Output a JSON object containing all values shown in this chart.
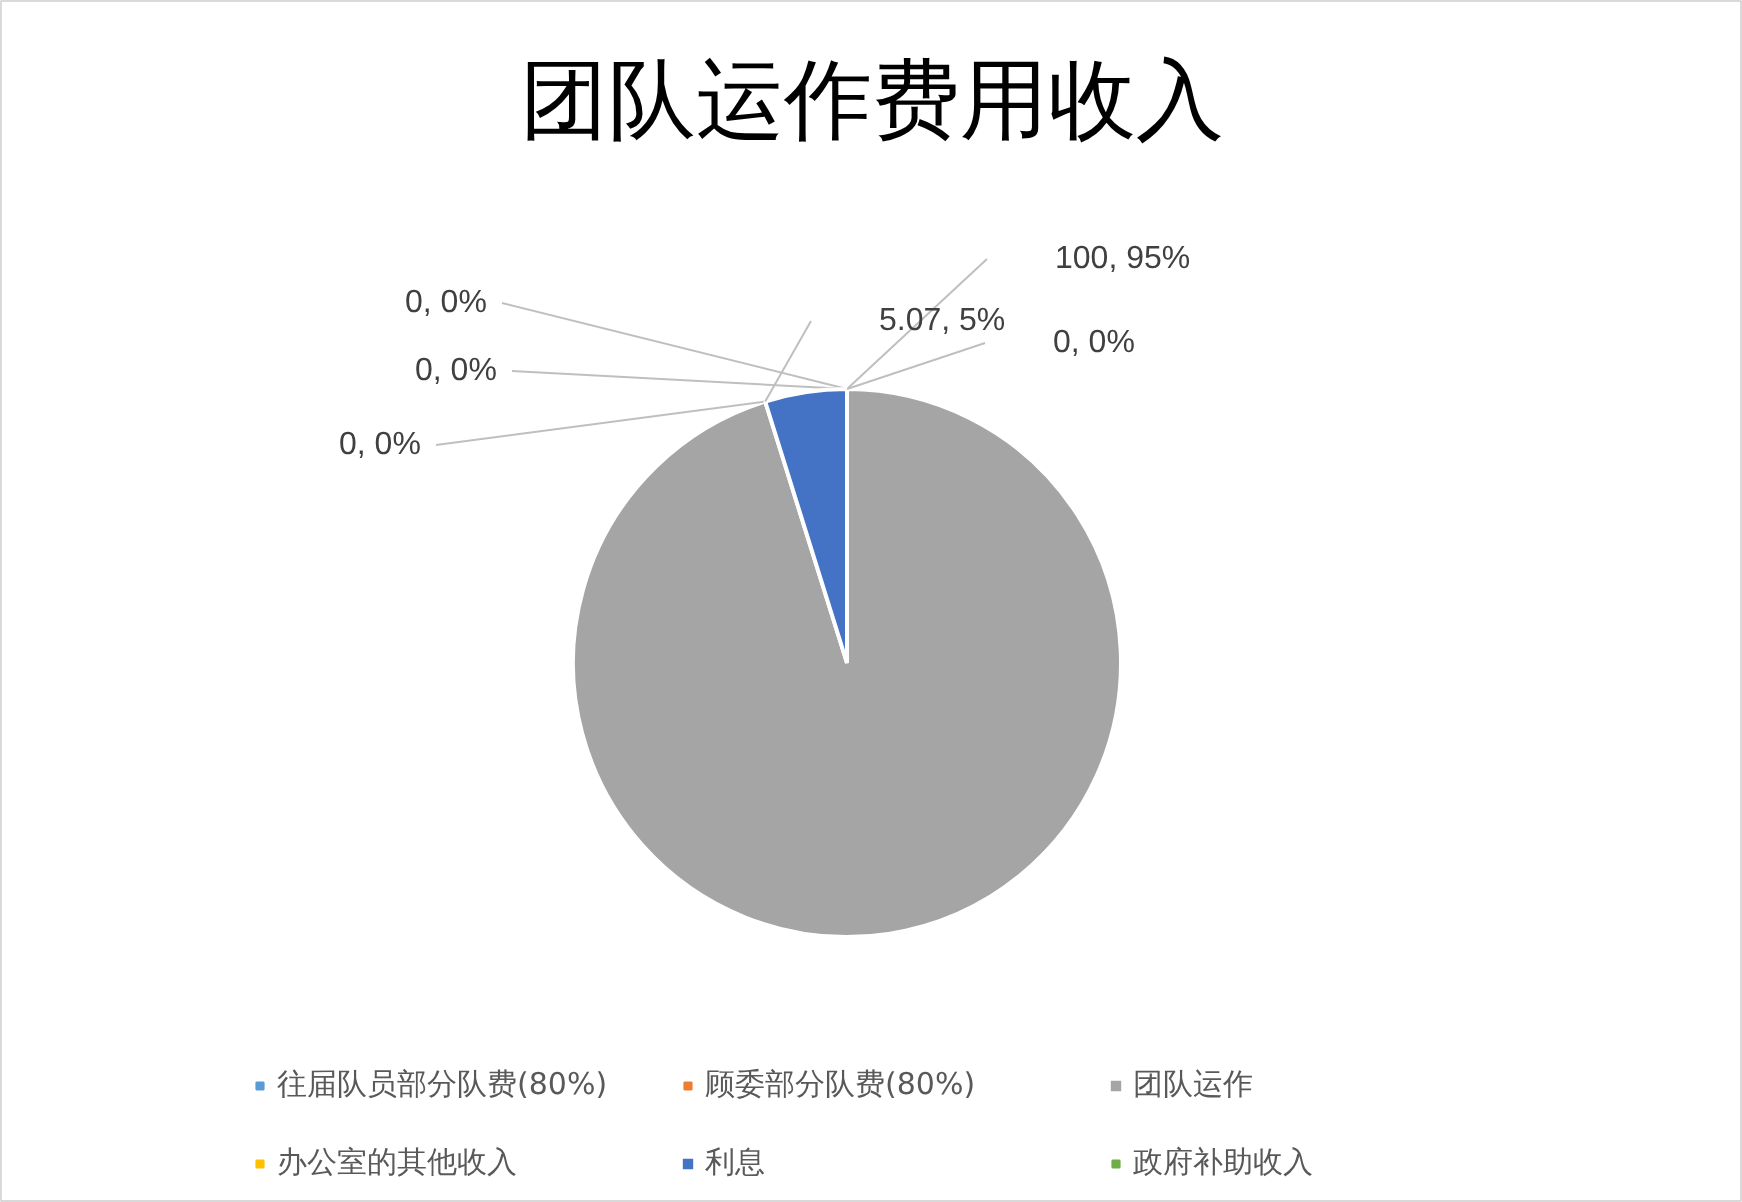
{
  "chart_data": {
    "type": "pie",
    "title": "团队运作费用收入",
    "categories": [
      "往届队员部分队费(80%)",
      "顾委部分队费(80%)",
      "团队运作",
      "办公室的其他收入",
      "利息",
      "政府补助收入"
    ],
    "values": [
      0,
      0,
      100,
      0,
      5.07,
      0
    ],
    "colors": [
      "#5b9bd5",
      "#ed7d31",
      "#a5a5a5",
      "#ffc000",
      "#4472c4",
      "#70ad47"
    ],
    "value_labels": [
      "0, 0%",
      "0, 0%",
      "100, 95%",
      "0, 0%",
      "5.07, 5%",
      "0, 0%"
    ],
    "legend": "bottom"
  }
}
